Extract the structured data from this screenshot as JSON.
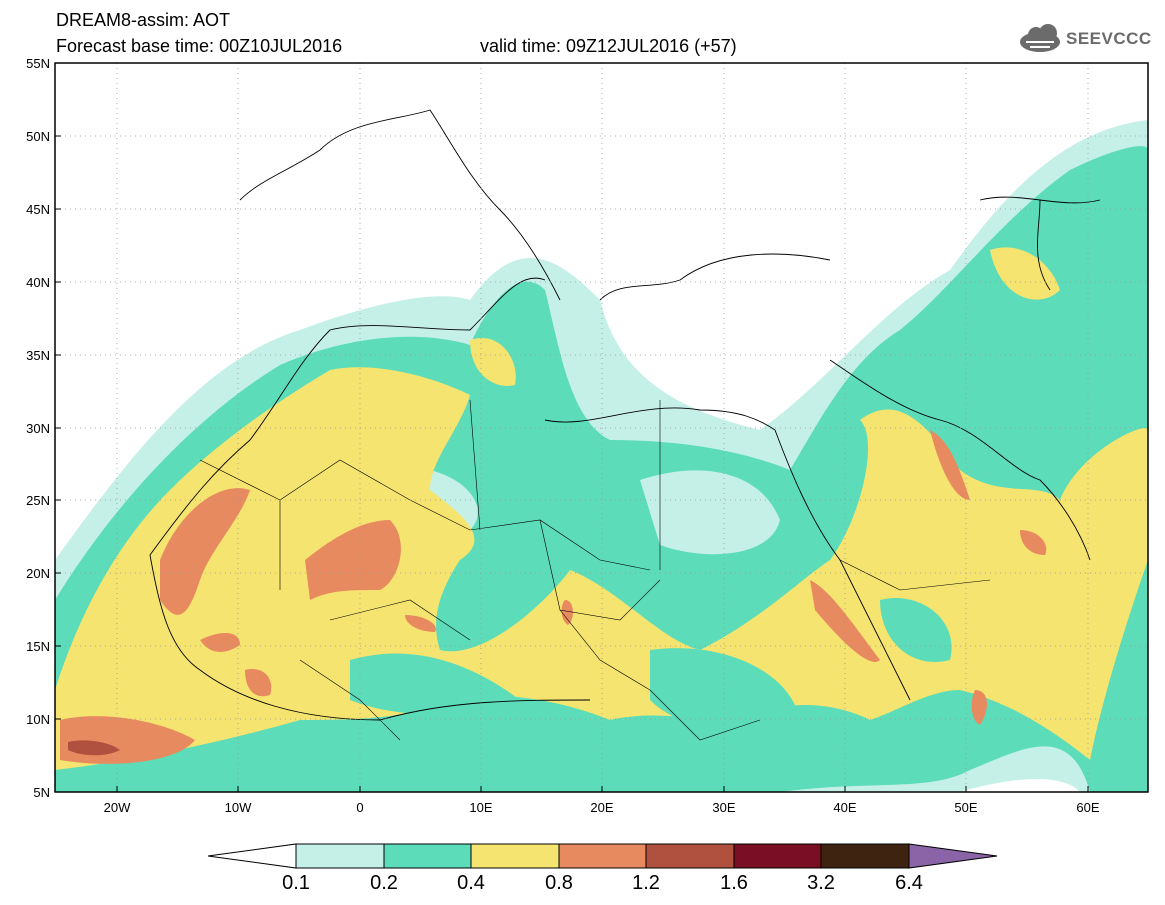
{
  "header": {
    "line1": "DREAM8-assim: AOT",
    "line2": "Forecast base time: 00Z10JUL2016",
    "valid": "valid time: 09Z12JUL2016 (+57)"
  },
  "logo": {
    "text": "SEEVCCC",
    "icon": "cloud-icon",
    "color": "#6b6b6b"
  },
  "axes": {
    "lat_labels": [
      "55N",
      "50N",
      "45N",
      "40N",
      "35N",
      "30N",
      "25N",
      "20N",
      "15N",
      "10N",
      "5N"
    ],
    "lon_labels": [
      "20W",
      "10W",
      "0",
      "10E",
      "20E",
      "30E",
      "40E",
      "50E",
      "60E"
    ]
  },
  "legend": {
    "labels": [
      "0.1",
      "0.2",
      "0.4",
      "0.8",
      "1.2",
      "1.6",
      "3.2",
      "6.4"
    ],
    "colors": [
      "#ffffff",
      "#c4f0e8",
      "#5cdcb8",
      "#f6e470",
      "#e88a60",
      "#b0503e",
      "#7a0e24",
      "#3e2410",
      "#8a64a6"
    ]
  },
  "colors": {
    "c1": "#c4f0e8",
    "c2": "#5cdcb8",
    "c3": "#f6e470",
    "c4": "#e88a60",
    "c5": "#b0503e"
  }
}
